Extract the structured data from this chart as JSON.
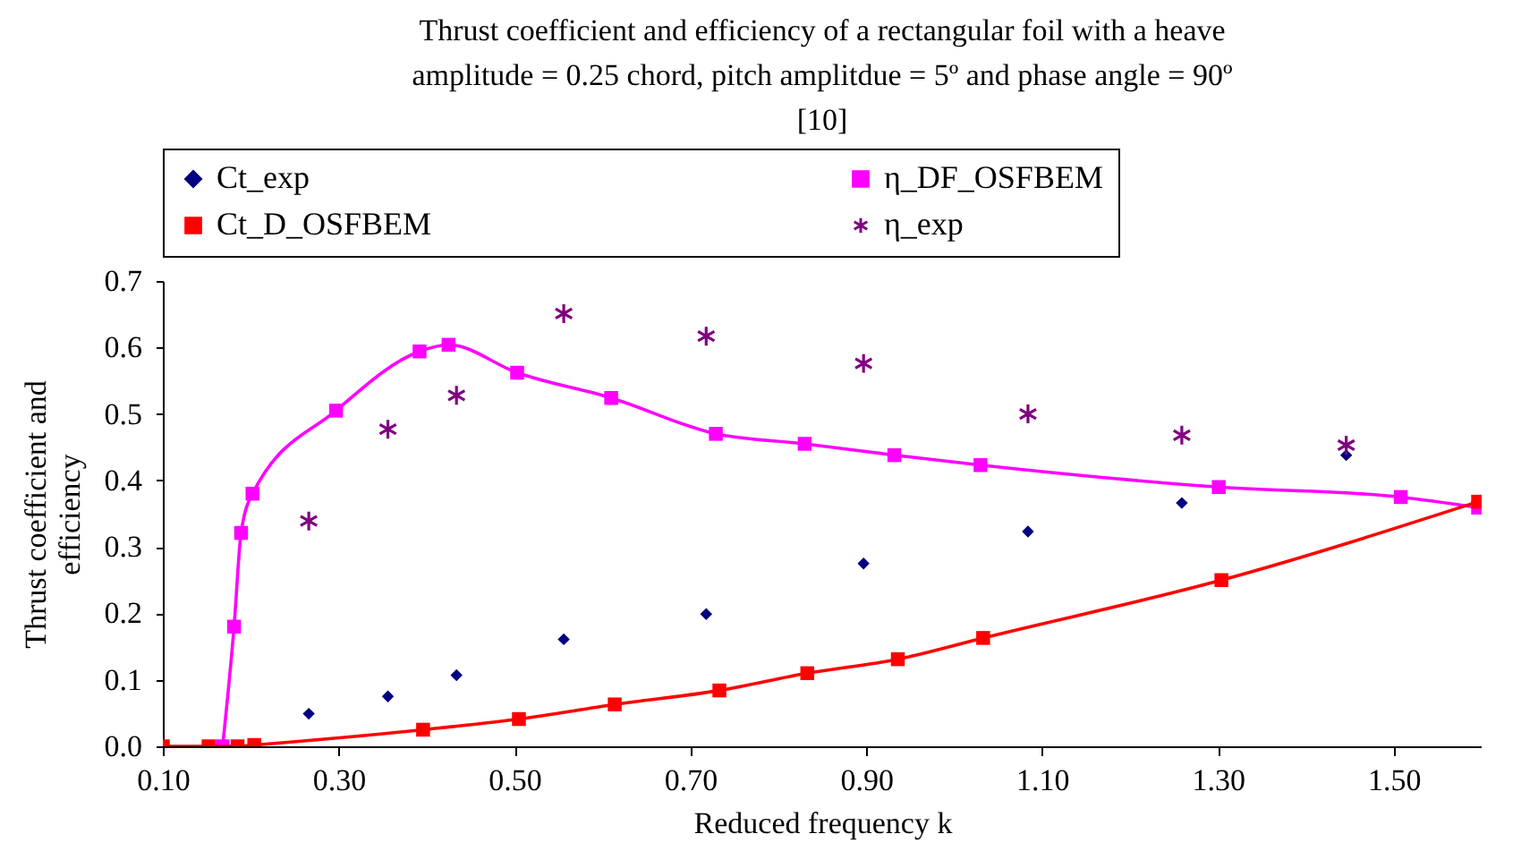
{
  "chart_data": {
    "type": "scatter",
    "title": "Thrust coefficient and efficiency of a rectangular foil with a heave\namplitude = 0.25 chord, pitch amplitdue = 5º and phase angle = 90º\n[10]",
    "xlabel": "Reduced frequency k",
    "ylabel": "Thrust coefficient and\nefficiency",
    "xlim": [
      0.1,
      1.6
    ],
    "ylim": [
      0,
      0.7
    ],
    "xticks": [
      {
        "value": 0.1,
        "label": "0.10"
      },
      {
        "value": 0.3,
        "label": "0.30"
      },
      {
        "value": 0.5,
        "label": "0.50"
      },
      {
        "value": 0.7,
        "label": "0.70"
      },
      {
        "value": 0.9,
        "label": "0.90"
      },
      {
        "value": 1.1,
        "label": "1.10"
      },
      {
        "value": 1.3,
        "label": "1.30"
      },
      {
        "value": 1.5,
        "label": "1.50"
      }
    ],
    "yticks": [
      {
        "value": 0,
        "label": "0.0"
      },
      {
        "value": 0.1,
        "label": "0.1"
      },
      {
        "value": 0.2,
        "label": "0.2"
      },
      {
        "value": 0.3,
        "label": "0.3"
      },
      {
        "value": 0.4,
        "label": "0.4"
      },
      {
        "value": 0.5,
        "label": "0.5"
      },
      {
        "value": 0.6,
        "label": "0.6"
      },
      {
        "value": 0.7,
        "label": "0.7"
      }
    ],
    "grid": false,
    "legend": "top",
    "series": [
      {
        "name": "Ct_exp",
        "type": "scatter",
        "marker": "diamond",
        "color": "#000080",
        "x": [
          0.266,
          0.356,
          0.434,
          0.556,
          0.718,
          0.897,
          1.084,
          1.259,
          1.446
        ],
        "values": [
          0.049,
          0.075,
          0.107,
          0.161,
          0.199,
          0.275,
          0.323,
          0.366,
          0.438
        ]
      },
      {
        "name": "η_DF_OSFBEM",
        "type": "line",
        "marker": "square",
        "color": "#ff00ff",
        "x": [
          0.168,
          0.181,
          0.189,
          0.202,
          0.297,
          0.392,
          0.425,
          0.503,
          0.61,
          0.729,
          0.83,
          0.932,
          1.03,
          1.301,
          1.508,
          1.596
        ],
        "values": [
          0.0,
          0.18,
          0.321,
          0.38,
          0.505,
          0.594,
          0.604,
          0.562,
          0.524,
          0.47,
          0.455,
          0.438,
          0.423,
          0.39,
          0.375,
          0.359
        ]
      },
      {
        "name": "Ct_D_OSFBEM",
        "type": "line",
        "marker": "square",
        "color": "#ff0000",
        "x": [
          0.1,
          0.152,
          0.185,
          0.204,
          0.396,
          0.505,
          0.614,
          0.733,
          0.833,
          0.936,
          1.033,
          1.304,
          1.596
        ],
        "values": [
          0.0,
          0.0,
          0.0,
          0.002,
          0.025,
          0.041,
          0.063,
          0.084,
          0.11,
          0.131,
          0.163,
          0.25,
          0.368
        ]
      },
      {
        "name": "η_exp",
        "type": "scatter",
        "marker": "cross",
        "color": "#800080",
        "x": [
          0.266,
          0.356,
          0.434,
          0.556,
          0.718,
          0.897,
          1.084,
          1.259,
          1.446
        ],
        "values": [
          0.339,
          0.477,
          0.528,
          0.651,
          0.617,
          0.576,
          0.5,
          0.468,
          0.453
        ]
      }
    ]
  }
}
